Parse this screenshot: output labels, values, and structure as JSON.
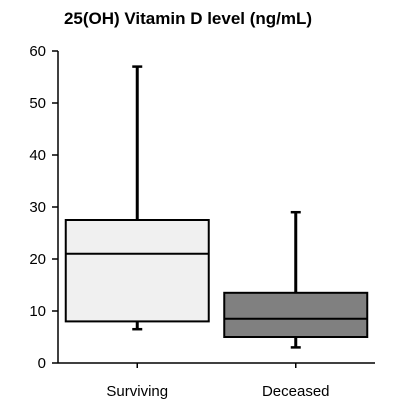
{
  "chart_data": {
    "type": "box",
    "title": "25(OH) Vitamin D level (ng/mL)",
    "xlabel": "",
    "ylabel": "",
    "ylim": [
      0,
      60
    ],
    "yticks": [
      0,
      10,
      20,
      30,
      40,
      50,
      60
    ],
    "grid": false,
    "legend": "none",
    "categories": [
      "Surviving",
      "Deceased"
    ],
    "boxes": [
      {
        "category": "Surviving",
        "min": 6.5,
        "q1": 8,
        "median": 21,
        "q3": 27.5,
        "max": 57,
        "fill": "#f0f0f0"
      },
      {
        "category": "Deceased",
        "min": 3,
        "q1": 5,
        "median": 8.5,
        "q3": 13.5,
        "max": 29,
        "fill": "#808080"
      }
    ]
  }
}
